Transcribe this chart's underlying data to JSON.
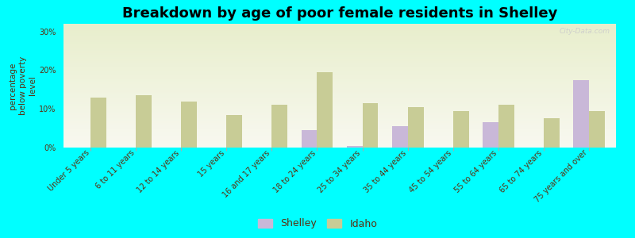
{
  "title": "Breakdown by age of poor female residents in Shelley",
  "ylabel": "percentage\nbelow poverty\nlevel",
  "background_color": "#00FFFF",
  "plot_bg_top": "#e8eecc",
  "plot_bg_bottom": "#f8f8f0",
  "categories": [
    "Under 5 years",
    "6 to 11 years",
    "12 to 14 years",
    "15 years",
    "16 and 17 years",
    "18 to 24 years",
    "25 to 34 years",
    "35 to 44 years",
    "45 to 54 years",
    "55 to 64 years",
    "65 to 74 years",
    "75 years and over"
  ],
  "shelley_values": [
    0,
    0,
    0,
    0,
    0,
    4.5,
    0.5,
    5.5,
    0,
    6.5,
    0,
    17.5
  ],
  "idaho_values": [
    13,
    13.5,
    12,
    8.5,
    11,
    19.5,
    11.5,
    10.5,
    9.5,
    11,
    7.5,
    9.5
  ],
  "shelley_color": "#c9b8d8",
  "idaho_color": "#c8cc96",
  "ylim": [
    0,
    32
  ],
  "yticks": [
    0,
    10,
    20,
    30
  ],
  "ytick_labels": [
    "0%",
    "10%",
    "20%",
    "30%"
  ],
  "bar_width": 0.35,
  "title_fontsize": 13,
  "axis_label_fontsize": 7.5,
  "tick_fontsize": 7,
  "legend_fontsize": 9,
  "label_color": "#5a3010",
  "watermark": "City-Data.com"
}
